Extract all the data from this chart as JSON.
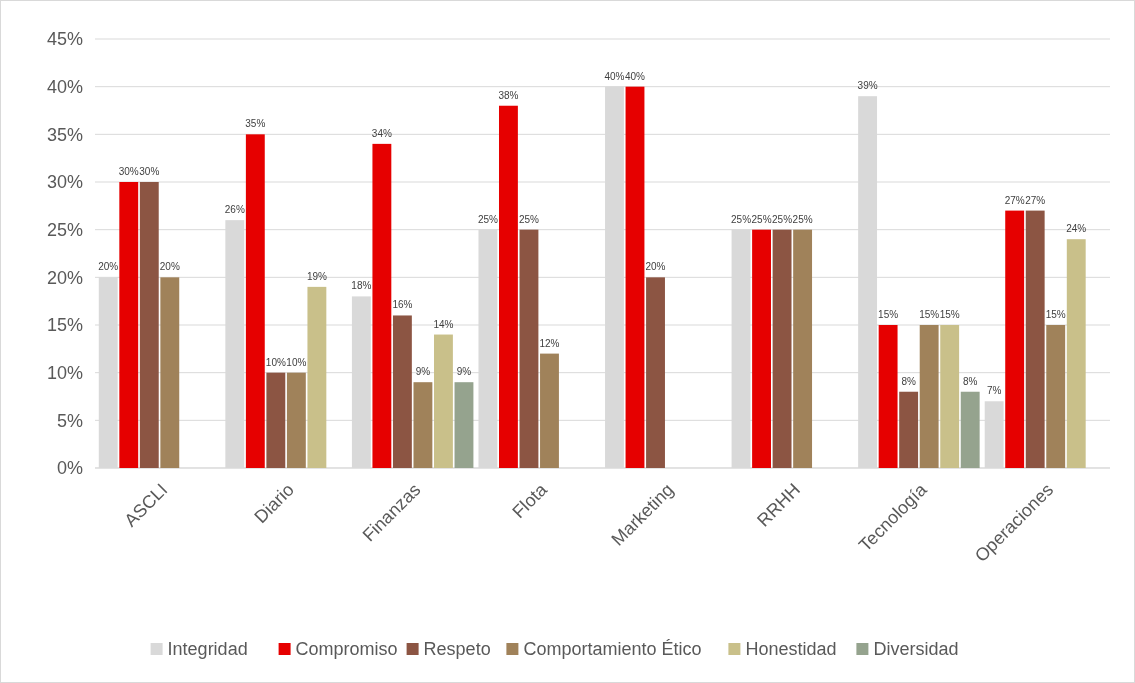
{
  "chart_data": {
    "type": "bar",
    "categories": [
      "ASCLI",
      "Diario",
      "Finanzas",
      "Flota",
      "Marketing",
      "RRHH",
      "Tecnología",
      "Operaciones"
    ],
    "series": [
      {
        "name": "Integridad",
        "color": "#d9d9d9",
        "values": [
          20,
          26,
          18,
          25,
          40,
          25,
          39,
          7
        ],
        "value_labels": [
          "20%",
          "26%",
          "18%",
          "25%",
          "40%",
          "25%",
          "39%",
          "7%"
        ]
      },
      {
        "name": "Compromiso",
        "color": "#e60000",
        "values": [
          30,
          35,
          34,
          38,
          40,
          25,
          15,
          27
        ],
        "value_labels": [
          "30%",
          "35%",
          "34%",
          "38%",
          "40%",
          "25%",
          "15%",
          "27%"
        ]
      },
      {
        "name": "Respeto",
        "color": "#8c5543",
        "values": [
          30,
          10,
          16,
          25,
          20,
          25,
          8,
          27
        ],
        "value_labels": [
          "30%",
          "10%",
          "16%",
          "25%",
          "20%",
          "25%",
          "8%",
          "27%"
        ]
      },
      {
        "name": "Comportamiento Ético",
        "color": "#a0825a",
        "values": [
          20,
          10,
          9,
          12,
          null,
          25,
          15,
          15
        ],
        "value_labels": [
          "20%",
          "10%",
          "9%",
          "12%",
          null,
          "25%",
          "15%",
          "15%"
        ]
      },
      {
        "name": "Honestidad",
        "color": "#c9c08a",
        "values": [
          null,
          19,
          14,
          null,
          null,
          null,
          15,
          24
        ],
        "value_labels": [
          null,
          "19%",
          "14%",
          null,
          null,
          null,
          "15%",
          "24%"
        ]
      },
      {
        "name": "Diversidad",
        "color": "#95a38e",
        "values": [
          null,
          null,
          9,
          null,
          null,
          null,
          8,
          null
        ],
        "value_labels": [
          null,
          null,
          "9%",
          null,
          null,
          null,
          "8%",
          null
        ]
      }
    ],
    "ylim": [
      0,
      45
    ],
    "yticks": [
      {
        "value": 0,
        "label": "0%"
      },
      {
        "value": 5,
        "label": "5%"
      },
      {
        "value": 10,
        "label": "10%"
      },
      {
        "value": 15,
        "label": "15%"
      },
      {
        "value": 20,
        "label": "20%"
      },
      {
        "value": 25,
        "label": "25%"
      },
      {
        "value": 30,
        "label": "30%"
      },
      {
        "value": 35,
        "label": "35%"
      },
      {
        "value": 40,
        "label": "40%"
      },
      {
        "value": 45,
        "label": "45%"
      }
    ],
    "grid": "y",
    "legend": "bottom"
  }
}
